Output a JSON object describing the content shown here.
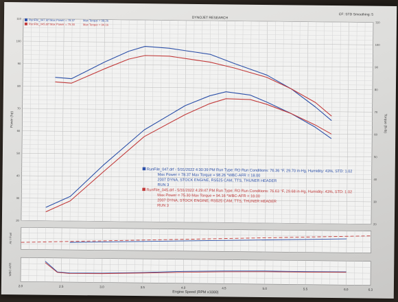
{
  "header": {
    "title": "DYNOJET RESEARCH",
    "right": "CF: STD  Smoothing: 5",
    "legend_left": [
      {
        "text": "RunFile_047.drf  Max Power = 78.37",
        "color": "#2b4fa8"
      },
      {
        "text": "RunFile_045.drf  Max Power = 75.30",
        "color": "#c23a3a"
      }
    ],
    "legend_right": [
      {
        "text": "Max Torque = 98.26",
        "color": "#2b4fa8"
      },
      {
        "text": "Max Torque = 94.16",
        "color": "#c23a3a"
      }
    ]
  },
  "run_info": [
    {
      "color": "#2b4fa8",
      "lines": [
        "RunFile_047.drf - 5/31/2022 4:30:39 PM  Run Type: RO  Run Conditions: 76.36 °F, 29.70 in-Hg,  Humidity:  43%,  STD: 1.02",
        "Max Power = 78.37  Max Torque = 98.26  *WBC-AFR = 18.00",
        "2007 DYNA, STOCK ENGINE, RS525 CAM, TTS, THUNER HEADER",
        "RUN 3"
      ]
    },
    {
      "color": "#c23a3a",
      "lines": [
        "RunFile_045.drf - 5/31/2022 4:29:47 PM  Run Type: RO  Run Conditions: 76.63 °F, 29.68 in-Hg,  Humidity:  43%,  STD: 1.02",
        "Max Power = 75.30  Max Torque = 94.16  *WBC-AFR = 18.00",
        "2007 DYNA, STOCK ENGINE, RS525 CAM, TTS, THUNER HEADER",
        "RUN 3"
      ]
    }
  ],
  "chart_data": [
    {
      "type": "line",
      "title": "DYNOJET RESEARCH",
      "xlabel": "Engine Speed (RPM x1000)",
      "ylabel": "Power (hp)",
      "ylabel_right": "Torque (ft-lb)",
      "xlim": [
        2.0,
        6.3
      ],
      "ylim": [
        20,
        110
      ],
      "grid": true,
      "left_ticks": [
        "110",
        "100",
        "90",
        "80",
        "70",
        "60",
        "50",
        "40",
        "30",
        "20"
      ],
      "right_ticks": [
        "110",
        "100",
        "90",
        "80",
        "70",
        "60",
        "50",
        "40",
        "30",
        "20"
      ],
      "series": [
        {
          "name": "RunFile_047.drf",
          "kind": "power",
          "color": "#2b4fa8",
          "x": [
            2.3,
            2.6,
            3.0,
            3.5,
            4.0,
            4.3,
            4.5,
            4.8,
            5.0,
            5.3,
            5.6,
            5.8
          ],
          "y": [
            26,
            31,
            45,
            61,
            72,
            76.5,
            78.37,
            77,
            74,
            69,
            63,
            58
          ]
        },
        {
          "name": "RunFile_045.drf",
          "kind": "power",
          "color": "#c23a3a",
          "x": [
            2.3,
            2.6,
            3.0,
            3.5,
            4.0,
            4.3,
            4.5,
            4.8,
            5.0,
            5.3,
            5.6,
            5.8
          ],
          "y": [
            24,
            29,
            42,
            58,
            68,
            73,
            75.3,
            75,
            73,
            69,
            64,
            60
          ]
        },
        {
          "name": "RunFile_047.drf",
          "kind": "torque",
          "color": "#2b4fa8",
          "x": [
            2.4,
            2.6,
            3.0,
            3.3,
            3.5,
            3.8,
            4.0,
            4.3,
            4.6,
            5.0,
            5.3,
            5.6,
            5.8
          ],
          "y": [
            84,
            83.5,
            91,
            96,
            98.26,
            97.5,
            96.5,
            95,
            91,
            86,
            80,
            72,
            66
          ]
        },
        {
          "name": "RunFile_045.drf",
          "kind": "torque",
          "color": "#c23a3a",
          "x": [
            2.4,
            2.6,
            3.0,
            3.3,
            3.5,
            3.8,
            4.0,
            4.3,
            4.6,
            5.0,
            5.3,
            5.6,
            5.8
          ],
          "y": [
            82,
            81.5,
            88,
            92.5,
            94.16,
            94,
            93,
            91.5,
            89,
            85,
            80,
            74,
            68
          ]
        }
      ]
    },
    {
      "type": "line",
      "title": "",
      "xlabel": "",
      "ylabel": "Air / Fuel",
      "xlim": [
        2.0,
        6.3
      ],
      "ylim": [
        10,
        20
      ],
      "grid": true,
      "series": [
        {
          "name": "",
          "color": "#c23a3a",
          "style": "dashed",
          "x": [
            2.0,
            6.3
          ],
          "y": [
            13.2,
            17.8
          ]
        },
        {
          "name": "",
          "color": "#2b4fa8",
          "style": "solid",
          "x": [
            2.6,
            6.0
          ],
          "y": [
            13.4,
            16.3
          ]
        }
      ]
    },
    {
      "type": "line",
      "title": "",
      "xlabel": "Engine Speed (RPM x1000)",
      "ylabel": "WBC-AFR",
      "xlim": [
        2.0,
        6.3
      ],
      "ylim": [
        10,
        20
      ],
      "grid": true,
      "x_ticks": [
        "2.0",
        "2.5",
        "3.0",
        "3.5",
        "4.0",
        "4.5",
        "5.0",
        "5.5",
        "6.0",
        "6.3"
      ],
      "series": [
        {
          "name": "",
          "color": "#2b4fa8",
          "x": [
            2.3,
            2.45,
            2.6,
            3.0,
            3.5,
            4.0,
            4.5,
            5.0,
            5.5,
            6.0
          ],
          "y": [
            18.6,
            14.2,
            13.8,
            13.9,
            14.3,
            15.0,
            15.3,
            15.5,
            15.4,
            15.5
          ]
        },
        {
          "name": "",
          "color": "#c23a3a",
          "x": [
            2.3,
            2.45,
            2.6,
            3.0,
            3.5,
            4.0,
            4.5,
            5.0,
            5.5,
            6.0
          ],
          "y": [
            18.0,
            14.0,
            13.6,
            13.7,
            14.1,
            14.6,
            15.0,
            15.2,
            15.2,
            15.3
          ]
        }
      ]
    }
  ]
}
